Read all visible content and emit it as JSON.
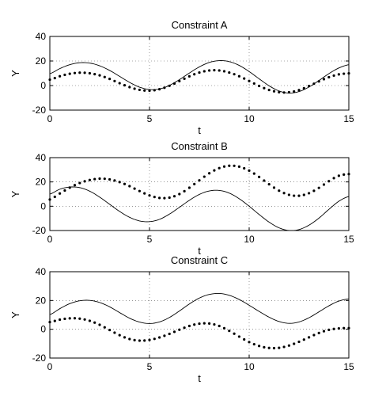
{
  "chart_data": [
    {
      "type": "line",
      "title": "Constraint A",
      "xlabel": "t",
      "ylabel": "Y",
      "xlim": [
        0,
        15
      ],
      "ylim": [
        -20,
        40
      ],
      "xticks": [
        0,
        5,
        10,
        15
      ],
      "yticks": [
        -20,
        0,
        20,
        40
      ],
      "grid": true,
      "series": [
        {
          "style": "solid",
          "x": [
            0,
            0.5,
            1,
            1.5,
            2,
            2.5,
            3,
            3.5,
            4,
            4.5,
            5,
            5.5,
            6,
            6.5,
            7,
            7.5,
            8,
            8.5,
            9,
            9.5,
            10,
            10.5,
            11,
            11.5,
            12,
            12.5,
            13,
            13.5,
            14,
            14.5,
            15
          ],
          "y": [
            9.7,
            13.8,
            17.0,
            18.6,
            18.3,
            16.1,
            12.3,
            7.5,
            2.6,
            -1.3,
            -3.2,
            -2.8,
            0.1,
            4.8,
            10.2,
            15.2,
            18.8,
            20.3,
            19.5,
            16.4,
            11.4,
            5.5,
            -0.2,
            -4.4,
            -6.1,
            -4.9,
            -1.2,
            4.1,
            9.7,
            14.3,
            17.0
          ]
        },
        {
          "style": "dotted",
          "x": [
            0,
            0.5,
            1,
            1.5,
            2,
            2.5,
            3,
            3.5,
            4,
            4.5,
            5,
            5.5,
            6,
            6.5,
            7,
            7.5,
            8,
            8.5,
            9,
            9.5,
            10,
            10.5,
            11,
            11.5,
            12,
            12.5,
            13,
            13.5,
            14,
            14.5,
            15
          ],
          "y": [
            4.8,
            7.6,
            9.6,
            10.5,
            10.0,
            8.3,
            5.4,
            1.9,
            -1.3,
            -3.5,
            -4.2,
            -3.0,
            -0.2,
            3.6,
            7.5,
            10.6,
            12.3,
            12.3,
            10.6,
            7.6,
            3.7,
            -0.3,
            -3.6,
            -5.4,
            -5.5,
            -3.7,
            -0.4,
            3.4,
            6.8,
            9.1,
            9.9
          ]
        }
      ]
    },
    {
      "type": "line",
      "title": "Constraint B",
      "xlabel": "t",
      "ylabel": "Y",
      "xlim": [
        0,
        15
      ],
      "ylim": [
        -20,
        40
      ],
      "xticks": [
        0,
        5,
        10,
        15
      ],
      "yticks": [
        -20,
        0,
        20,
        40
      ],
      "grid": true,
      "series": [
        {
          "style": "solid",
          "x": [
            0,
            0.5,
            1,
            1.5,
            2,
            2.5,
            3,
            3.5,
            4,
            4.5,
            5,
            5.5,
            6,
            6.5,
            7,
            7.5,
            8,
            8.5,
            9,
            9.5,
            10,
            10.5,
            11,
            11.5,
            12,
            12.5,
            13,
            13.5,
            14,
            14.5,
            15
          ],
          "y": [
            10.0,
            14.0,
            15.8,
            15.3,
            12.4,
            7.5,
            1.6,
            -4.3,
            -9.1,
            -12.1,
            -12.7,
            -10.8,
            -6.5,
            -0.9,
            4.9,
            9.7,
            12.6,
            13.0,
            10.8,
            6.2,
            0.0,
            -6.8,
            -13.1,
            -17.8,
            -20.0,
            -19.2,
            -15.6,
            -9.8,
            -2.6,
            4.1,
            8.0
          ]
        },
        {
          "style": "dotted",
          "x": [
            0,
            0.5,
            1,
            1.5,
            2,
            2.5,
            3,
            3.5,
            4,
            4.5,
            5,
            5.5,
            6,
            6.5,
            7,
            7.5,
            8,
            8.5,
            9,
            9.5,
            10,
            10.5,
            11,
            11.5,
            12,
            12.5,
            13,
            13.5,
            14,
            14.5,
            15
          ],
          "y": [
            5.5,
            10.5,
            15.3,
            19.1,
            21.6,
            22.7,
            22.1,
            19.9,
            16.5,
            12.5,
            8.9,
            6.8,
            7.1,
            10.0,
            15.2,
            21.3,
            27.1,
            31.4,
            33.3,
            32.6,
            29.3,
            24.1,
            18.1,
            12.8,
            9.4,
            8.6,
            10.7,
            15.1,
            20.6,
            25.1,
            26.5
          ]
        }
      ]
    },
    {
      "type": "line",
      "title": "Constraint C",
      "xlabel": "t",
      "ylabel": "Y",
      "xlim": [
        0,
        15
      ],
      "ylim": [
        -20,
        40
      ],
      "xticks": [
        0,
        5,
        10,
        15
      ],
      "yticks": [
        -20,
        0,
        20,
        40
      ],
      "grid": true,
      "series": [
        {
          "style": "solid",
          "x": [
            0,
            0.5,
            1,
            1.5,
            2,
            2.5,
            3,
            3.5,
            4,
            4.5,
            5,
            5.5,
            6,
            6.5,
            7,
            7.5,
            8,
            8.5,
            9,
            9.5,
            10,
            10.5,
            11,
            11.5,
            12,
            12.5,
            13,
            13.5,
            14,
            14.5,
            15
          ],
          "y": [
            10.2,
            14.3,
            17.8,
            19.8,
            20.1,
            18.6,
            15.6,
            11.6,
            7.7,
            5.0,
            4.0,
            5.1,
            8.2,
            12.7,
            17.6,
            21.7,
            24.2,
            24.9,
            23.6,
            20.7,
            16.7,
            12.4,
            8.4,
            5.4,
            4.1,
            5.1,
            8.0,
            12.1,
            16.3,
            19.6,
            21.1
          ]
        },
        {
          "style": "dotted",
          "x": [
            0,
            0.5,
            1,
            1.5,
            2,
            2.5,
            3,
            3.5,
            4,
            4.5,
            5,
            5.5,
            6,
            6.5,
            7,
            7.5,
            8,
            8.5,
            9,
            9.5,
            10,
            10.5,
            11,
            11.5,
            12,
            12.5,
            13,
            13.5,
            14,
            14.5,
            15
          ],
          "y": [
            5.0,
            6.7,
            7.6,
            7.4,
            5.9,
            3.1,
            -0.5,
            -4.1,
            -6.8,
            -7.9,
            -7.4,
            -5.7,
            -3.2,
            -0.3,
            2.3,
            3.9,
            4.0,
            2.3,
            -1.1,
            -5.1,
            -8.9,
            -11.6,
            -13.0,
            -12.9,
            -11.3,
            -8.7,
            -5.6,
            -2.6,
            -0.4,
            0.6,
            0.8
          ]
        }
      ]
    }
  ]
}
